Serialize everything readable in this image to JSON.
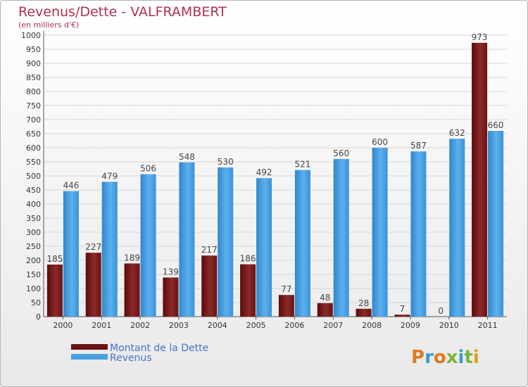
{
  "chart_data": {
    "type": "bar",
    "title": "Revenus/Dette - VALFRAMBERT",
    "subtitle": "(en milliers d'€)",
    "xlabel": "",
    "ylabel": "",
    "ylim": [
      0,
      1000
    ],
    "ytick_step": 50,
    "categories": [
      "2000",
      "2001",
      "2002",
      "2003",
      "2004",
      "2005",
      "2006",
      "2007",
      "2008",
      "2009",
      "2010",
      "2011"
    ],
    "series": [
      {
        "name": "Montant de la Dette",
        "color": "#7a1818",
        "values": [
          185,
          227,
          189,
          139,
          217,
          186,
          77,
          48,
          28,
          7,
          0,
          973
        ]
      },
      {
        "name": "Revenus",
        "color": "#4aa2e2",
        "values": [
          446,
          479,
          506,
          548,
          530,
          492,
          521,
          560,
          600,
          587,
          632,
          660
        ]
      }
    ],
    "grid": true,
    "legend_position": "bottom-left"
  },
  "logo": {
    "text": "Proxiti"
  }
}
